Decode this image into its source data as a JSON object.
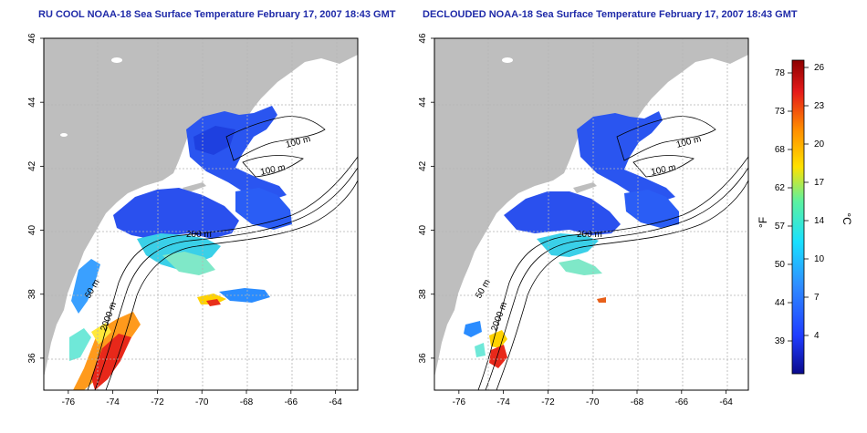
{
  "panels": [
    {
      "title": "RU COOL NOAA-18 Sea Surface Temperature February 17, 2007 18:43 GMT",
      "labels": [
        "100 m",
        "100 m",
        "200 m",
        "50 m",
        "2000 m"
      ]
    },
    {
      "title": "DECLOUDED NOAA-18 Sea Surface Temperature February 17, 2007 18:43 GMT",
      "labels": [
        "100 m",
        "100 m",
        "200 m",
        "50 m",
        "2000 m"
      ]
    }
  ],
  "axes": {
    "x_ticks": [
      "-76",
      "-74",
      "-72",
      "-70",
      "-68",
      "-66",
      "-64"
    ],
    "y_ticks": [
      "46",
      "44",
      "42",
      "40",
      "38",
      "36"
    ],
    "lon_range": [
      -77.1,
      -63.0
    ],
    "lat_range": [
      35.0,
      46.0
    ]
  },
  "colorbar": {
    "f_label": "°F",
    "c_label": "°C",
    "f_ticks": [
      "78",
      "73",
      "68",
      "62",
      "57",
      "50",
      "44",
      "39"
    ],
    "c_ticks": [
      "26",
      "23",
      "20",
      "17",
      "14",
      "10",
      "7",
      "4"
    ],
    "colors": [
      "#0a0a8c",
      "#1f3cff",
      "#2f8cff",
      "#19e0ff",
      "#5cf2a0",
      "#ffe100",
      "#ff8c00",
      "#e51a1a",
      "#8c0000"
    ]
  },
  "colors": {
    "land": "#bebebe",
    "cold_sst": "#2a50ee",
    "warm_sst": "#e23012",
    "title": "#1f2aa8"
  }
}
